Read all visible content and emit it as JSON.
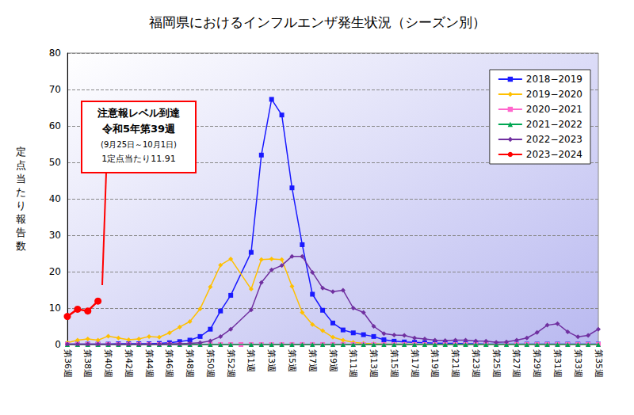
{
  "chart_data": {
    "type": "line",
    "title": "福岡県におけるインフルエンザ発生状況（シーズン別）",
    "ylabel": "定点当たり報告数",
    "annotations": [
      "注意報レベル到達",
      "令和5年第39週",
      "(9月25日～10月1日)",
      "1定点当たり11.91"
    ],
    "categories": [
      "第36週",
      null,
      "第38週",
      null,
      "第40週",
      null,
      "第42週",
      null,
      "第44週",
      null,
      "第46週",
      null,
      "第48週",
      null,
      "第50週",
      null,
      "第52週",
      null,
      "第1週",
      null,
      "第3週",
      null,
      "第5週",
      null,
      "第7週",
      null,
      "第9週",
      null,
      "第11週",
      null,
      "第13週",
      null,
      "第15週",
      null,
      "第17週",
      null,
      "第19週",
      null,
      "第21週",
      null,
      "第23週",
      null,
      "第25週",
      null,
      "第27週",
      null,
      "第29週",
      null,
      "第31週",
      null,
      "第33週",
      null,
      "第35週"
    ],
    "series": [
      {
        "name": "2018−2019",
        "color": "#1a1aff",
        "marker": "square",
        "line_style": "solid",
        "values": [
          0.1,
          0.1,
          0.1,
          0.1,
          0.1,
          0.2,
          0.2,
          0.2,
          0.2,
          0.3,
          0.5,
          0.8,
          1.2,
          2.2,
          4.2,
          9.2,
          13.5,
          null,
          25.3,
          52.0,
          67.3,
          63.0,
          43.0,
          27.4,
          13.8,
          9.4,
          5.9,
          4.0,
          3.2,
          2.7,
          2.2,
          1.3,
          0.9,
          0.7,
          0.6,
          0.5,
          0.4,
          0.3,
          0.3,
          0.2,
          0.2,
          0.1,
          0.1,
          0.1,
          0.1,
          0.1,
          0.1,
          0.1,
          0.1,
          0.1,
          0.1,
          0.1,
          0.1
        ]
      },
      {
        "name": "2019−2020",
        "color": "#ffc000",
        "marker": "diamond",
        "line_style": "solid",
        "values": [
          0.5,
          1.2,
          1.5,
          1.2,
          2.3,
          1.8,
          1.3,
          1.5,
          2.2,
          2.0,
          3.2,
          4.8,
          6.3,
          9.8,
          15.8,
          21.8,
          23.5,
          null,
          15.2,
          23.3,
          23.5,
          23.3,
          16.0,
          8.8,
          5.5,
          3.8,
          2.0,
          1.2,
          0.6,
          0.3,
          0.2,
          0.1,
          0.1,
          0.1,
          0.1,
          0.0,
          0.0,
          0.0,
          0.0,
          0.0,
          0.0,
          0.0,
          0.0,
          0.0,
          0.0,
          0.0,
          0.0,
          0.0,
          0.0,
          0.0,
          0.0,
          0.0,
          0.0
        ]
      },
      {
        "name": "2020−2021",
        "color": "#ff66cc",
        "marker": "square",
        "line_style": "solid",
        "values": [
          0.0,
          0.0,
          0.0,
          0.0,
          0.0,
          0.0,
          0.0,
          0.0,
          0.0,
          0.0,
          0.0,
          0.0,
          0.0,
          0.0,
          0.0,
          0.0,
          0.0,
          0.0,
          0.0,
          0.0,
          0.0,
          0.0,
          0.0,
          0.0,
          0.0,
          0.0,
          0.0,
          0.0,
          0.0,
          0.0,
          0.0,
          0.0,
          0.0,
          0.0,
          0.0,
          0.0,
          0.0,
          0.0,
          0.0,
          0.0,
          0.0,
          0.0,
          0.0,
          0.0,
          0.0,
          0.0,
          0.0,
          0.0,
          0.0,
          0.0,
          0.0,
          0.0,
          0.0
        ]
      },
      {
        "name": "2021−2022",
        "color": "#00a651",
        "marker": "triangle",
        "line_style": "solid",
        "values": [
          0.0,
          0.0,
          0.0,
          0.0,
          0.0,
          0.0,
          0.0,
          0.0,
          0.0,
          0.0,
          0.0,
          0.0,
          0.0,
          0.0,
          0.0,
          0.0,
          0.0,
          null,
          0.0,
          0.0,
          0.0,
          0.0,
          0.0,
          0.0,
          0.0,
          0.0,
          0.0,
          0.0,
          0.0,
          0.0,
          0.0,
          0.0,
          0.0,
          0.0,
          0.0,
          0.0,
          0.0,
          0.0,
          0.0,
          0.0,
          0.0,
          0.0,
          0.0,
          0.0,
          0.0,
          0.0,
          0.0,
          0.0,
          0.0,
          0.0,
          0.0,
          0.0,
          0.0
        ]
      },
      {
        "name": "2022−2023",
        "color": "#7030a0",
        "marker": "diamond",
        "line_style": "solid",
        "values": [
          0.1,
          0.1,
          0.1,
          0.1,
          0.1,
          0.1,
          0.1,
          0.1,
          0.1,
          0.1,
          0.2,
          0.2,
          0.3,
          0.5,
          1.0,
          2.2,
          4.2,
          null,
          9.5,
          17.0,
          20.5,
          21.7,
          24.2,
          24.2,
          19.8,
          15.5,
          14.5,
          14.9,
          10.0,
          8.8,
          5.0,
          3.0,
          2.6,
          2.5,
          1.8,
          1.5,
          1.2,
          1.1,
          1.2,
          1.2,
          1.0,
          0.9,
          0.6,
          0.7,
          1.2,
          1.8,
          3.3,
          5.3,
          5.7,
          3.5,
          2.1,
          2.5,
          4.2
        ]
      },
      {
        "name": "2023−2024",
        "color": "#ff0000",
        "marker": "circle",
        "line_style": "solid",
        "values": [
          7.7,
          9.7,
          9.2,
          11.91,
          null,
          null,
          null,
          null,
          null,
          null,
          null,
          null,
          null,
          null,
          null,
          null,
          null,
          null,
          null,
          null,
          null,
          null,
          null,
          null,
          null,
          null,
          null,
          null,
          null,
          null,
          null,
          null,
          null,
          null,
          null,
          null,
          null,
          null,
          null,
          null,
          null,
          null,
          null,
          null,
          null,
          null,
          null,
          null,
          null,
          null,
          null,
          null,
          null
        ]
      }
    ],
    "ylim": [
      0,
      80
    ],
    "yticks": [
      0,
      10,
      20,
      30,
      40,
      50,
      60,
      70,
      80
    ],
    "grid": true,
    "legend": "upper right"
  }
}
